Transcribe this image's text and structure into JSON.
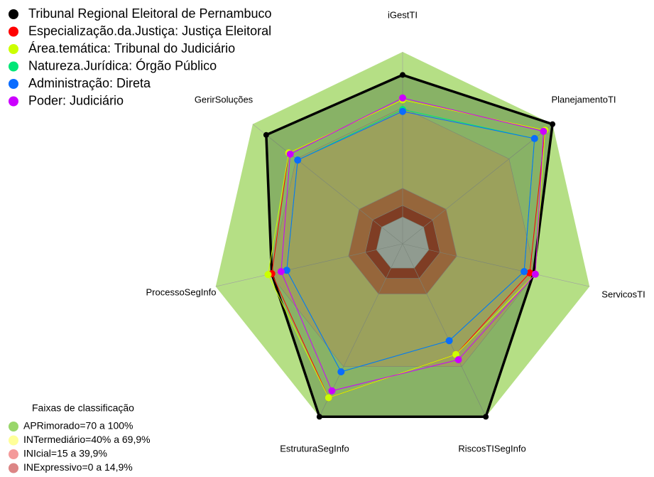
{
  "chart_data": {
    "type": "radar",
    "categories": [
      "iGestTI",
      "PlanejamentoTI",
      "ServicosTI",
      "RiscosTISegInfo",
      "EstruturaSegInfo",
      "ProcessoSegInfo",
      "GerirSoluções"
    ],
    "ylim": [
      0,
      100
    ],
    "series": [
      {
        "name": "Tribunal Regional Eleitoral de Pernambuco",
        "color": "#000000",
        "values": [
          88,
          100,
          70,
          100,
          100,
          70,
          91
        ]
      },
      {
        "name": "Especialização.da.Justiça: Justiça Eleitoral",
        "color": "#ff0000",
        "values": [
          75,
          95,
          68,
          64,
          89,
          70,
          76
        ]
      },
      {
        "name": "Área.temática: Tribunal do Judiciário",
        "color": "#ccff00",
        "values": [
          75,
          95,
          71,
          64,
          89,
          72,
          76
        ]
      },
      {
        "name": "Natureza.Jurídica: Órgão Público",
        "color": "#00e676",
        "values": [
          70,
          88,
          65,
          56,
          74,
          62,
          70
        ]
      },
      {
        "name": "Administração: Direta",
        "color": "#0a6cff",
        "values": [
          69,
          88,
          65,
          56,
          74,
          62,
          70
        ]
      },
      {
        "name": "Poder: Judiciário",
        "color": "#cc00ff",
        "values": [
          76,
          94,
          71,
          67,
          85,
          65,
          75
        ]
      }
    ],
    "bands_title": "Faixas de classificação",
    "bands": [
      {
        "label": "APRimorado=70 a 100%",
        "color": "#99d66a"
      },
      {
        "label": "INTermediário=40% a 69,9%",
        "color": "#ffff99"
      },
      {
        "label": "INIcial=15 a 39,9%",
        "color": "#f49a9a"
      },
      {
        "label": "INExpressivo=0 a 14,9%",
        "color": "#dc8585"
      }
    ]
  }
}
